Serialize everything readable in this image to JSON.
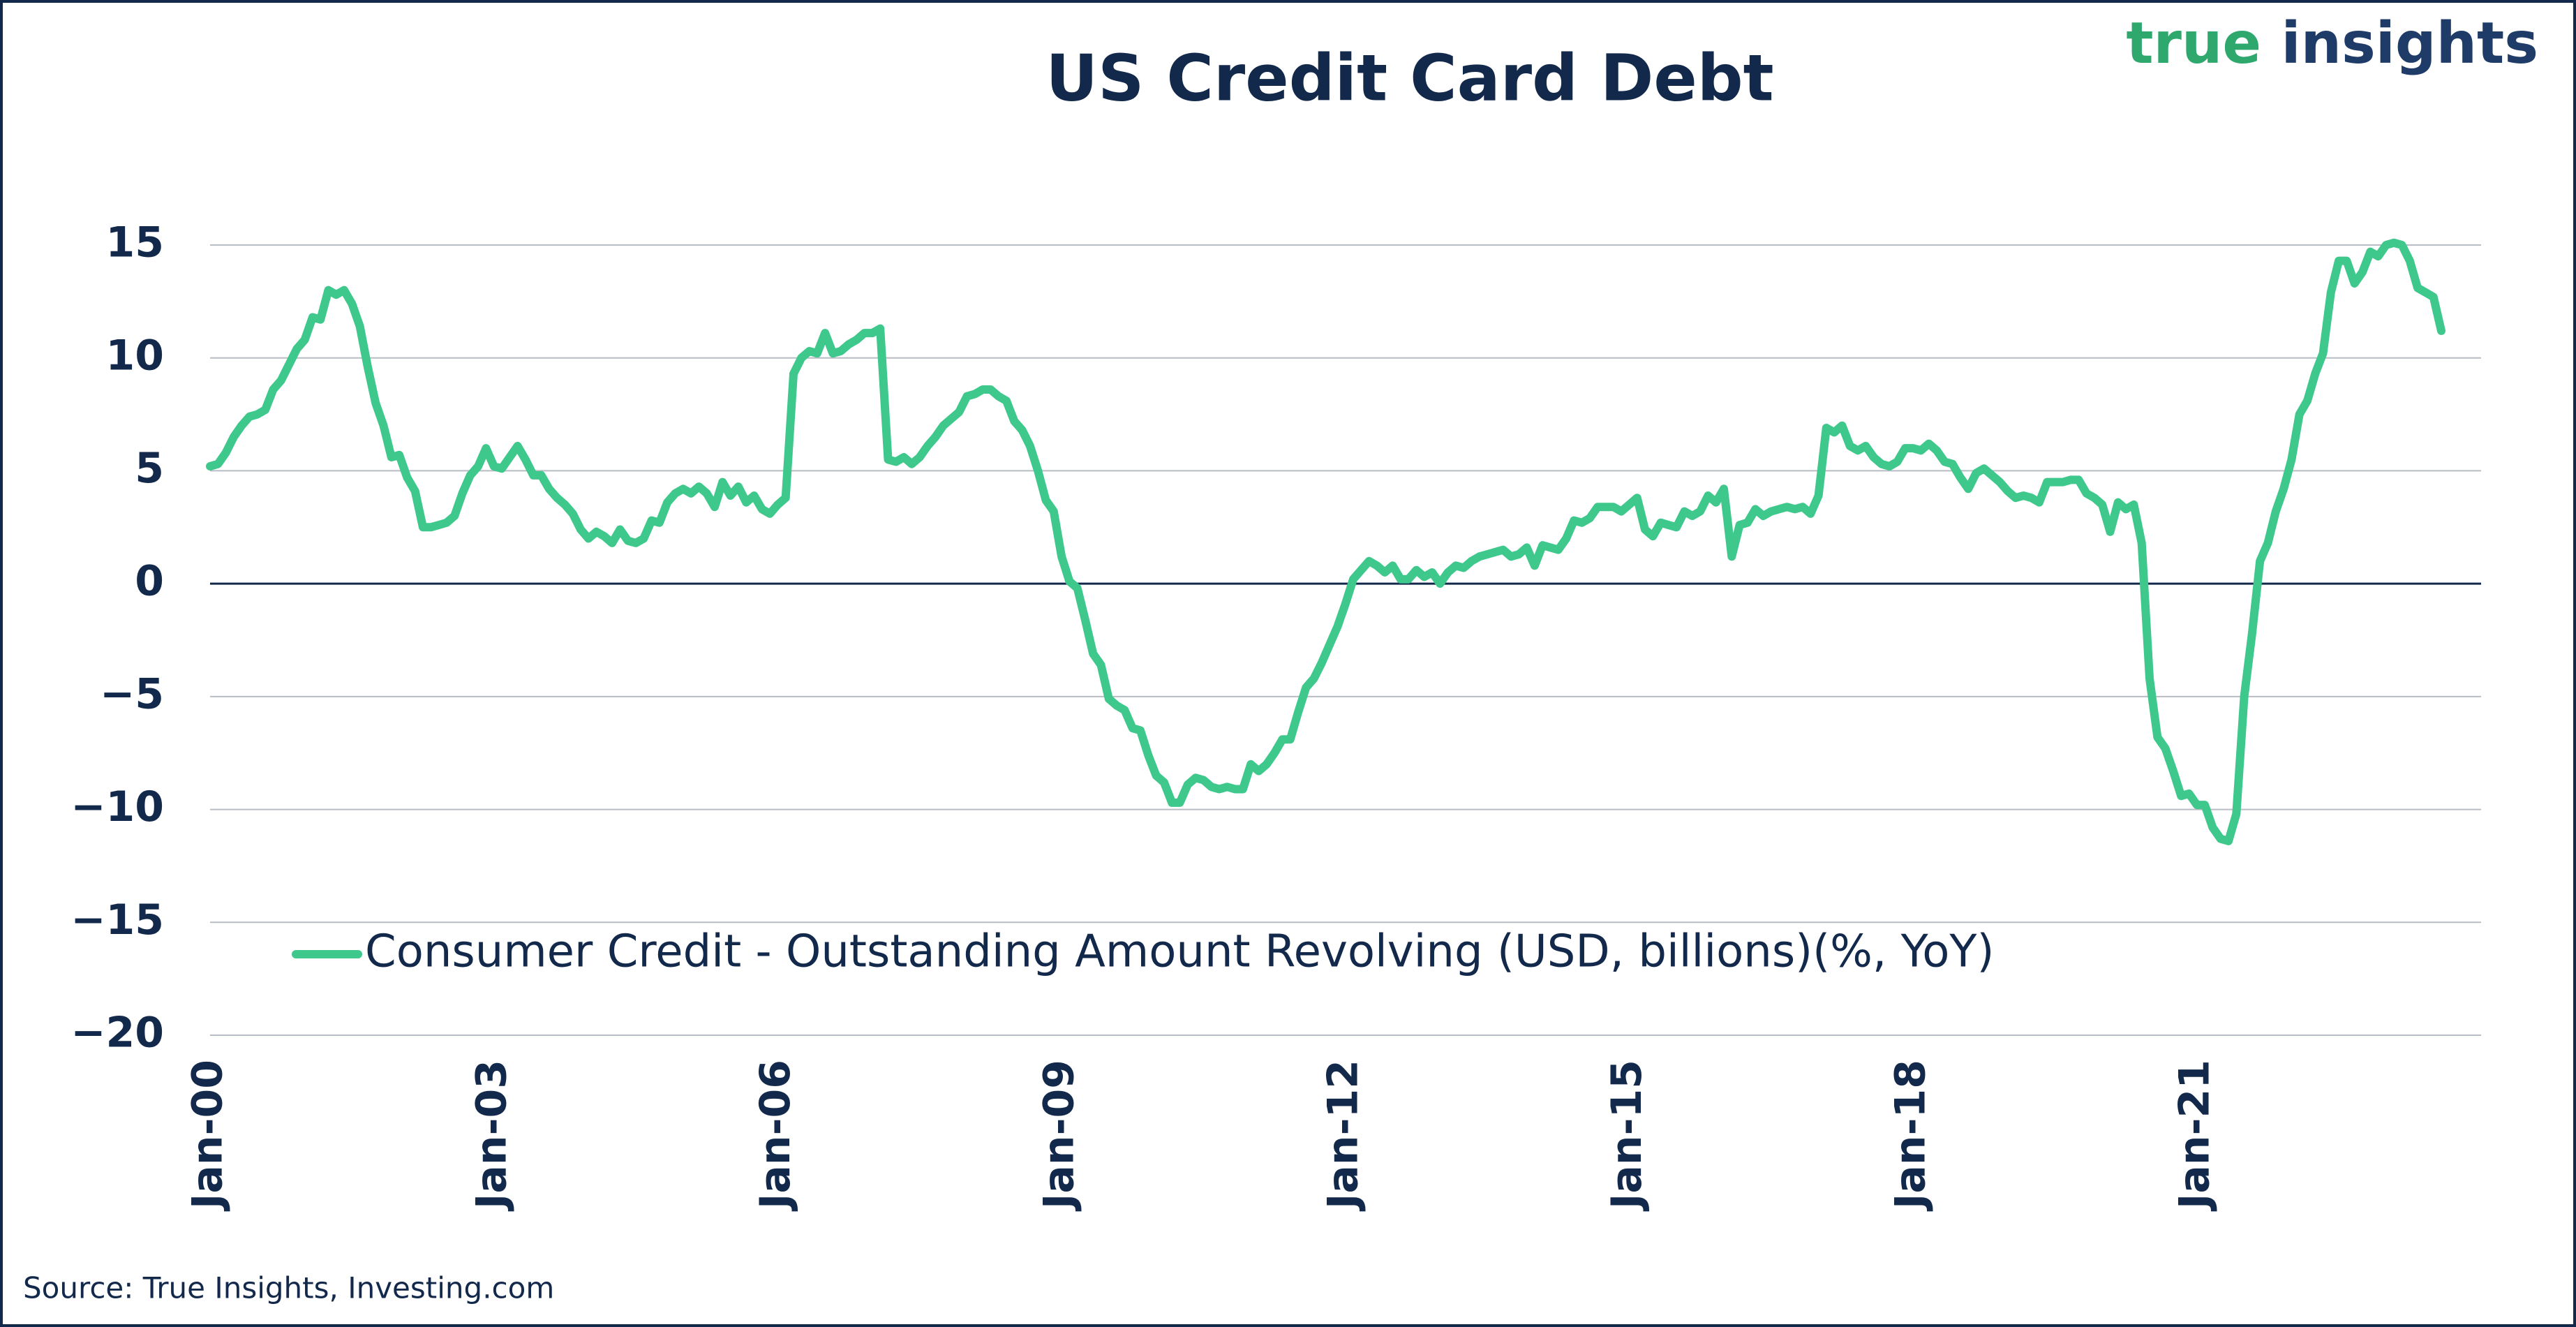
{
  "logo": [
    "true",
    "insights"
  ],
  "chart_data": {
    "type": "line",
    "title": "US Credit Card Debt",
    "source": "Source: True Insights, Investing.com",
    "categories": [
      "Jan-00",
      null,
      null,
      null,
      null,
      null,
      null,
      null,
      null,
      null,
      null,
      null,
      null,
      null,
      null,
      null,
      null,
      null,
      null,
      null,
      null,
      null,
      null,
      null,
      null,
      null,
      null,
      null,
      null,
      null,
      null,
      null,
      null,
      null,
      null,
      null,
      "Jan-03",
      null,
      null,
      null,
      null,
      null,
      null,
      null,
      null,
      null,
      null,
      null,
      null,
      null,
      null,
      null,
      null,
      null,
      null,
      null,
      null,
      null,
      null,
      null,
      null,
      null,
      null,
      null,
      null,
      null,
      null,
      null,
      null,
      null,
      null,
      null,
      "Jan-06",
      null,
      null,
      null,
      null,
      null,
      null,
      null,
      null,
      null,
      null,
      null,
      null,
      null,
      null,
      null,
      null,
      null,
      null,
      null,
      null,
      null,
      null,
      null,
      null,
      null,
      null,
      null,
      null,
      null,
      null,
      null,
      null,
      null,
      null,
      null,
      "Jan-09",
      null,
      null,
      null,
      null,
      null,
      null,
      null,
      null,
      null,
      null,
      null,
      null,
      null,
      null,
      null,
      null,
      null,
      null,
      null,
      null,
      null,
      null,
      null,
      null,
      null,
      null,
      null,
      null,
      null,
      null,
      null,
      null,
      null,
      null,
      null,
      "Jan-12",
      null,
      null,
      null,
      null,
      null,
      null,
      null,
      null,
      null,
      null,
      null,
      null,
      null,
      null,
      null,
      null,
      null,
      null,
      null,
      null,
      null,
      null,
      null,
      null,
      null,
      null,
      null,
      null,
      null,
      null,
      null,
      null,
      null,
      null,
      null,
      "Jan-15",
      null,
      null,
      null,
      null,
      null,
      null,
      null,
      null,
      null,
      null,
      null,
      null,
      null,
      null,
      null,
      null,
      null,
      null,
      null,
      null,
      null,
      null,
      null,
      null,
      null,
      null,
      null,
      null,
      null,
      null,
      null,
      null,
      null,
      null,
      null,
      "Jan-18",
      null,
      null,
      null,
      null,
      null,
      null,
      null,
      null,
      null,
      null,
      null,
      null,
      null,
      null,
      null,
      null,
      null,
      null,
      null,
      null,
      null,
      null,
      null,
      null,
      null,
      null,
      null,
      null,
      null,
      null,
      null,
      null,
      null,
      null,
      null,
      "Jan-21",
      null,
      null,
      null,
      null,
      null,
      null,
      null,
      null,
      null,
      null,
      null,
      null,
      null,
      null,
      null,
      null,
      null,
      null,
      null,
      null,
      null,
      null,
      null,
      null,
      null,
      null,
      null,
      null,
      null,
      null,
      null
    ],
    "series": [
      {
        "name": "Consumer Credit - Outstanding Amount Revolving (USD, billions)(%, YoY)",
        "color": "#3fc88c",
        "values": [
          5.2,
          5.3,
          5.8,
          6.5,
          7.0,
          7.4,
          7.5,
          7.7,
          8.6,
          9.0,
          9.7,
          10.4,
          10.8,
          11.8,
          11.7,
          13.0,
          12.8,
          13.0,
          12.4,
          11.4,
          9.6,
          8.0,
          7.0,
          5.6,
          5.7,
          4.7,
          4.1,
          2.5,
          2.5,
          2.6,
          2.7,
          3.0,
          4.0,
          4.8,
          5.2,
          6.0,
          5.2,
          5.1,
          5.6,
          6.1,
          5.5,
          4.8,
          4.8,
          4.2,
          3.8,
          3.5,
          3.1,
          2.4,
          2.0,
          2.3,
          2.1,
          1.8,
          2.4,
          1.9,
          1.8,
          2.0,
          2.8,
          2.7,
          3.6,
          4.0,
          4.2,
          4.0,
          4.3,
          4.0,
          3.4,
          4.5,
          3.9,
          4.3,
          3.6,
          3.9,
          3.3,
          3.1,
          3.5,
          3.8,
          9.3,
          10.0,
          10.3,
          10.2,
          11.1,
          10.2,
          10.3,
          10.6,
          10.8,
          11.1,
          11.1,
          11.3,
          5.5,
          5.4,
          5.6,
          5.3,
          5.6,
          6.1,
          6.5,
          7.0,
          7.3,
          7.6,
          8.3,
          8.4,
          8.6,
          8.6,
          8.3,
          8.1,
          7.2,
          6.8,
          6.1,
          5.0,
          3.7,
          3.2,
          1.2,
          0.1,
          -0.2,
          -1.6,
          -3.1,
          -3.6,
          -5.1,
          -5.4,
          -5.6,
          -6.4,
          -6.5,
          -7.6,
          -8.5,
          -8.8,
          -9.7,
          -9.7,
          -8.9,
          -8.6,
          -8.7,
          -9.0,
          -9.1,
          -9.0,
          -9.1,
          -9.1,
          -8.0,
          -8.3,
          -8.0,
          -7.5,
          -6.9,
          -6.9,
          -5.7,
          -4.6,
          -4.2,
          -3.5,
          -2.7,
          -1.9,
          -0.9,
          0.2,
          0.6,
          1.0,
          0.8,
          0.5,
          0.8,
          0.2,
          0.2,
          0.6,
          0.3,
          0.5,
          0.0,
          0.5,
          0.8,
          0.7,
          1.0,
          1.2,
          1.3,
          1.4,
          1.5,
          1.2,
          1.3,
          1.6,
          0.8,
          1.7,
          1.6,
          1.5,
          2.0,
          2.8,
          2.7,
          2.9,
          3.4,
          3.4,
          3.4,
          3.2,
          3.5,
          3.8,
          2.4,
          2.1,
          2.7,
          2.6,
          2.5,
          3.2,
          3.0,
          3.2,
          3.9,
          3.6,
          4.2,
          1.2,
          2.6,
          2.7,
          3.3,
          3.0,
          3.2,
          3.3,
          3.4,
          3.3,
          3.4,
          3.1,
          3.9,
          6.9,
          6.7,
          7.0,
          6.1,
          5.9,
          6.1,
          5.6,
          5.3,
          5.2,
          5.4,
          6.0,
          6.0,
          5.9,
          6.2,
          5.9,
          5.4,
          5.3,
          4.7,
          4.2,
          4.9,
          5.1,
          4.8,
          4.5,
          4.1,
          3.8,
          3.9,
          3.8,
          3.6,
          4.5,
          4.5,
          4.5,
          4.6,
          4.6,
          4.0,
          3.8,
          3.5,
          2.3,
          3.6,
          3.3,
          3.5,
          1.8,
          -4.2,
          -6.8,
          -7.3,
          -8.3,
          -9.4,
          -9.3,
          -9.8,
          -9.8,
          -10.8,
          -11.3,
          -11.4,
          -10.2,
          -5.0,
          -2.2,
          1.0,
          1.8,
          3.2,
          4.2,
          5.5,
          7.5,
          8.1,
          9.3,
          10.2,
          12.9,
          14.3,
          14.3,
          13.3,
          13.8,
          14.7,
          14.5,
          15.0,
          15.1,
          15.0,
          14.3,
          13.1,
          12.9,
          12.7,
          11.2
        ]
      }
    ],
    "ylim": [
      -20,
      15
    ],
    "yticks": [
      15,
      10,
      5,
      0,
      {
        "value": -5,
        "label": "−5"
      },
      {
        "value": -10,
        "label": "−10"
      },
      {
        "value": -15,
        "label": "−15"
      },
      {
        "value": -20,
        "label": "−20"
      }
    ],
    "grid": true,
    "legend": "lower-left"
  }
}
